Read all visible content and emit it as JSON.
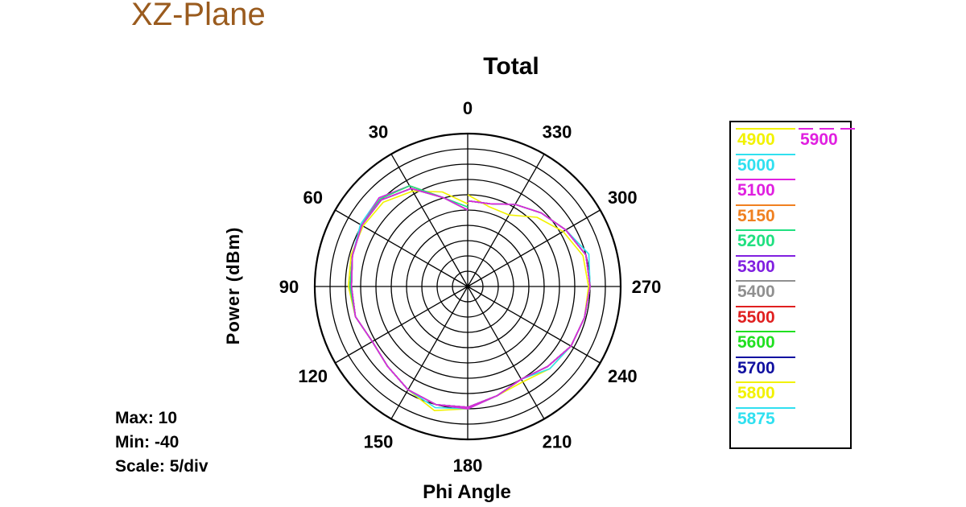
{
  "page_title": "XZ-Plane",
  "chart_data": {
    "type": "polar-line",
    "title": "Total",
    "xlabel": "Phi Angle",
    "ylabel": "Power  (dBm)",
    "angle_ticks": [
      "0",
      "30",
      "60",
      "90",
      "120",
      "150",
      "180",
      "210",
      "240",
      "270",
      "300",
      "330"
    ],
    "angle_tick_values": [
      0,
      30,
      60,
      90,
      120,
      150,
      180,
      210,
      240,
      270,
      300,
      330
    ],
    "angle_direction": "counterclockwise",
    "zero_at": "top",
    "radial_range": [
      -40,
      10
    ],
    "radial_step": 5,
    "stats": {
      "max": "Max: 10",
      "min": "Min: -40",
      "scale": "Scale: 5/div"
    },
    "legend_placement": "right",
    "series": [
      {
        "name": "4900",
        "color": "#f2f200",
        "values": [
          -13,
          -8,
          -4,
          -1,
          -0.5,
          -0.5,
          -1,
          -2,
          -4,
          -3,
          -1,
          2,
          0,
          -3,
          -4,
          -2,
          -1,
          -0.5,
          -0.5,
          -1,
          -4,
          -8,
          -13,
          -13,
          -10
        ]
      },
      {
        "name": "5000",
        "color": "#30e0f0",
        "values": [
          -15,
          -10,
          -2,
          1,
          0.5,
          -1,
          -1.5,
          -2,
          -4,
          -3,
          -1,
          1,
          0,
          -3,
          -5,
          -2,
          -1,
          -0.5,
          0,
          1,
          -3,
          -6,
          -9,
          -12,
          -12
        ]
      },
      {
        "name": "5100",
        "color": "#e020e0",
        "values": [
          -15,
          -10,
          -2,
          1,
          0,
          -1,
          -1.5,
          -2,
          -4,
          -3,
          -1,
          0,
          0,
          -3,
          -5,
          -3,
          -1,
          -0.5,
          0,
          0,
          -3,
          -6,
          -9,
          -12,
          -12
        ]
      },
      {
        "name": "5150",
        "color": "#f08020",
        "values": [
          -15,
          -10,
          -2,
          0.5,
          0,
          -1,
          -1.5,
          -2,
          -4,
          -3,
          -1,
          0,
          -0.5,
          -3,
          -5,
          -3,
          -1,
          -0.5,
          0,
          0,
          -3,
          -6,
          -9,
          -12,
          -12
        ]
      },
      {
        "name": "5200",
        "color": "#20e080",
        "values": [
          -14,
          -10,
          -2,
          0.5,
          0,
          -1,
          -1.5,
          -2,
          -4,
          -3,
          -1,
          0,
          -0.5,
          -3,
          -5,
          -3,
          -1,
          -0.5,
          0,
          0,
          -3,
          -6,
          -9,
          -12,
          -12
        ]
      },
      {
        "name": "5300",
        "color": "#8020e0",
        "values": [
          -15,
          -10,
          -3,
          0,
          0,
          -1,
          -2,
          -2,
          -4,
          -3,
          -1,
          0,
          -0.5,
          -3,
          -5,
          -3,
          -1,
          -0.5,
          0,
          0,
          -3,
          -6,
          -9,
          -12,
          -12
        ]
      },
      {
        "name": "5400",
        "color": "#909090",
        "values": [
          -15,
          -10,
          -3,
          0,
          0,
          -1,
          -2,
          -2,
          -4,
          -3,
          -1,
          0,
          -0.5,
          -3,
          -5,
          -3,
          -1,
          -0.5,
          0,
          0,
          -3,
          -6,
          -9,
          -12,
          -12
        ]
      },
      {
        "name": "5500",
        "color": "#e02020",
        "values": [
          -15,
          -10,
          -3,
          0,
          0,
          -1,
          -2,
          -2,
          -4,
          -3,
          -1,
          0,
          -0.5,
          -3,
          -5,
          -3,
          -1,
          -0.5,
          0,
          0,
          -3,
          -6,
          -9,
          -12,
          -12
        ]
      },
      {
        "name": "5600",
        "color": "#20e020",
        "values": [
          -15,
          -10,
          -3,
          0,
          0,
          -1,
          -2,
          -2,
          -4,
          -3,
          -1,
          0,
          -0.5,
          -3,
          -5,
          -3,
          -1,
          -0.5,
          0,
          0,
          -3,
          -6,
          -9,
          -12,
          -12
        ]
      },
      {
        "name": "5700",
        "color": "#1010a0",
        "values": [
          -15,
          -10,
          -3,
          0,
          0,
          -1,
          -2,
          -2,
          -4,
          -3,
          -1,
          0,
          -0.5,
          -3,
          -5,
          -3,
          -1,
          -0.5,
          0,
          0,
          -3,
          -6,
          -9,
          -12,
          -12
        ]
      },
      {
        "name": "5800",
        "color": "#f2f200",
        "values": [
          -15,
          -10,
          -3,
          0,
          0,
          -1,
          -2,
          -2,
          -4,
          -3,
          -1,
          0,
          -0.5,
          -3,
          -5,
          -3,
          -1,
          -0.5,
          0,
          0,
          -3,
          -6,
          -9,
          -12,
          -12
        ]
      },
      {
        "name": "5875",
        "color": "#30e0f0",
        "values": [
          -15,
          -10,
          -3,
          0,
          0,
          -1,
          -2,
          -2,
          -4,
          -3,
          -1,
          0,
          -0.5,
          -3,
          -5,
          -3,
          -1,
          -0.5,
          0,
          0,
          -3,
          -6,
          -9,
          -12,
          -12
        ]
      },
      {
        "name": "5900",
        "color": "#e020e0",
        "values": [
          -15,
          -10,
          -3,
          0,
          0,
          -1,
          -2,
          -2,
          -4,
          -3,
          -1,
          0,
          -0.5,
          -3,
          -5,
          -3,
          -1,
          -0.5,
          0,
          0,
          -3,
          -6,
          -9,
          -12,
          -12
        ]
      }
    ],
    "series_angles": [
      0,
      15,
      30,
      45,
      60,
      75,
      90,
      105,
      120,
      135,
      150,
      165,
      180,
      195,
      210,
      225,
      240,
      255,
      270,
      285,
      300,
      315,
      330,
      345,
      360
    ]
  }
}
